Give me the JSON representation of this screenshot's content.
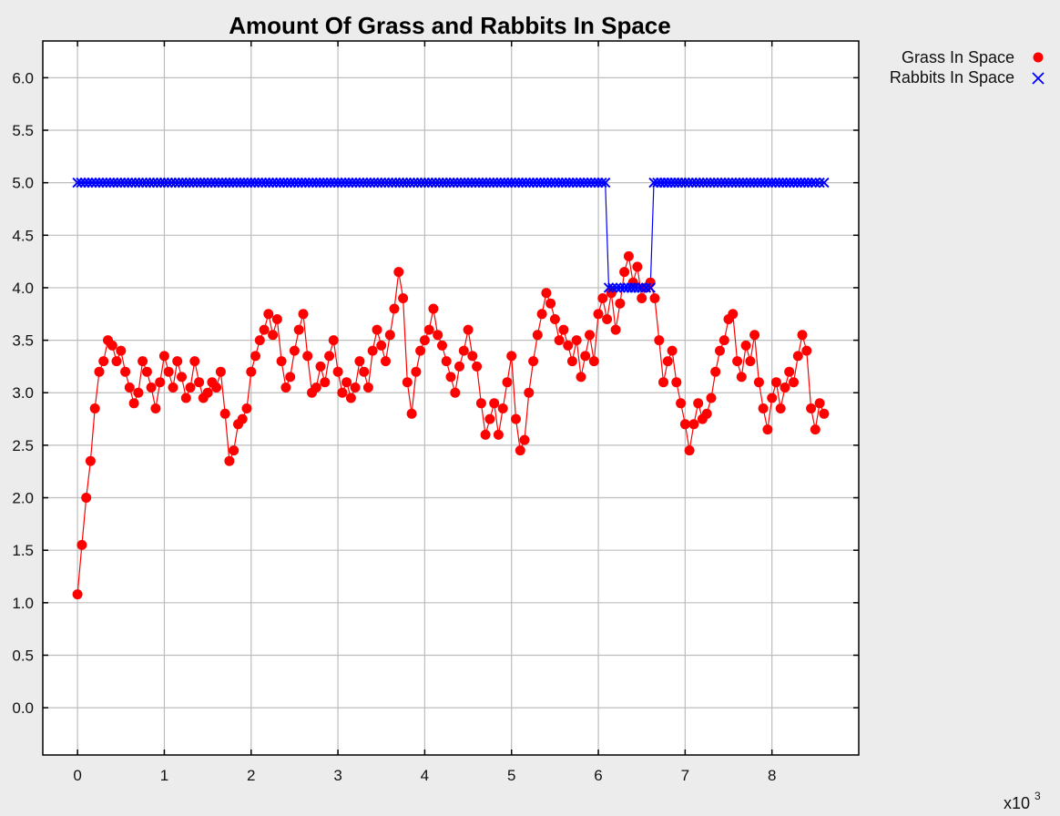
{
  "chart_data": {
    "type": "line",
    "title": "Amount Of Grass and Rabbits In Space",
    "xlabel": "",
    "ylabel": "",
    "x_multiplier_label": "x10",
    "x_multiplier_exponent": "3",
    "xlim": [
      -0.4,
      9.0
    ],
    "ylim": [
      -0.45,
      6.35
    ],
    "x_ticks": [
      0,
      1,
      2,
      3,
      4,
      5,
      6,
      7,
      8
    ],
    "x_tick_labels": [
      "0",
      "1",
      "2",
      "3",
      "4",
      "5",
      "6",
      "7",
      "8"
    ],
    "y_ticks": [
      0,
      0.5,
      1,
      1.5,
      2,
      2.5,
      3,
      3.5,
      4,
      4.5,
      5,
      5.5,
      6
    ],
    "y_tick_labels": [
      "0.0",
      "0.5",
      "1.0",
      "1.5",
      "2.0",
      "2.5",
      "3.0",
      "3.5",
      "4.0",
      "4.5",
      "5.0",
      "5.5",
      "6.0"
    ],
    "grid": true,
    "legend_position": "outside-top-right",
    "series": [
      {
        "name": "Grass In Space",
        "marker": "circle",
        "color": "#ff0000",
        "x": [
          0.0,
          0.05,
          0.1,
          0.15,
          0.2,
          0.25,
          0.3,
          0.35,
          0.4,
          0.45,
          0.5,
          0.55,
          0.6,
          0.65,
          0.7,
          0.75,
          0.8,
          0.85,
          0.9,
          0.95,
          1.0,
          1.05,
          1.1,
          1.15,
          1.2,
          1.25,
          1.3,
          1.35,
          1.4,
          1.45,
          1.5,
          1.55,
          1.6,
          1.65,
          1.7,
          1.75,
          1.8,
          1.85,
          1.9,
          1.95,
          2.0,
          2.05,
          2.1,
          2.15,
          2.2,
          2.25,
          2.3,
          2.35,
          2.4,
          2.45,
          2.5,
          2.55,
          2.6,
          2.65,
          2.7,
          2.75,
          2.8,
          2.85,
          2.9,
          2.95,
          3.0,
          3.05,
          3.1,
          3.15,
          3.2,
          3.25,
          3.3,
          3.35,
          3.4,
          3.45,
          3.5,
          3.55,
          3.6,
          3.65,
          3.7,
          3.75,
          3.8,
          3.85,
          3.9,
          3.95,
          4.0,
          4.05,
          4.1,
          4.15,
          4.2,
          4.25,
          4.3,
          4.35,
          4.4,
          4.45,
          4.5,
          4.55,
          4.6,
          4.65,
          4.7,
          4.75,
          4.8,
          4.85,
          4.9,
          4.95,
          5.0,
          5.05,
          5.1,
          5.15,
          5.2,
          5.25,
          5.3,
          5.35,
          5.4,
          5.45,
          5.5,
          5.55,
          5.6,
          5.65,
          5.7,
          5.75,
          5.8,
          5.85,
          5.9,
          5.95,
          6.0,
          6.05,
          6.1,
          6.15,
          6.2,
          6.25,
          6.3,
          6.35,
          6.4,
          6.45,
          6.5,
          6.55,
          6.6,
          6.65,
          6.7,
          6.75,
          6.8,
          6.85,
          6.9,
          6.95,
          7.0,
          7.05,
          7.1,
          7.15,
          7.2,
          7.25,
          7.3,
          7.35,
          7.4,
          7.45,
          7.5,
          7.55,
          7.6,
          7.65,
          7.7,
          7.75,
          7.8,
          7.85,
          7.9,
          7.95,
          8.0,
          8.05,
          8.1,
          8.15,
          8.2,
          8.25,
          8.3,
          8.35,
          8.4,
          8.45,
          8.5,
          8.55,
          8.6
        ],
        "y": [
          1.08,
          1.55,
          2.0,
          2.35,
          2.85,
          3.2,
          3.3,
          3.5,
          3.45,
          3.3,
          3.4,
          3.2,
          3.05,
          2.9,
          3.0,
          3.3,
          3.2,
          3.05,
          2.85,
          3.1,
          3.35,
          3.2,
          3.05,
          3.3,
          3.15,
          2.95,
          3.05,
          3.3,
          3.1,
          2.95,
          3.0,
          3.1,
          3.05,
          3.2,
          2.8,
          2.35,
          2.45,
          2.7,
          2.75,
          2.85,
          3.2,
          3.35,
          3.5,
          3.6,
          3.75,
          3.55,
          3.7,
          3.3,
          3.05,
          3.15,
          3.4,
          3.6,
          3.75,
          3.35,
          3.0,
          3.05,
          3.25,
          3.1,
          3.35,
          3.5,
          3.2,
          3.0,
          3.1,
          2.95,
          3.05,
          3.3,
          3.2,
          3.05,
          3.4,
          3.6,
          3.45,
          3.3,
          3.55,
          3.8,
          4.15,
          3.9,
          3.1,
          2.8,
          3.2,
          3.4,
          3.5,
          3.6,
          3.8,
          3.55,
          3.45,
          3.3,
          3.15,
          3.0,
          3.25,
          3.4,
          3.6,
          3.35,
          3.25,
          2.9,
          2.6,
          2.75,
          2.9,
          2.6,
          2.85,
          3.1,
          3.35,
          2.75,
          2.45,
          2.55,
          3.0,
          3.3,
          3.55,
          3.75,
          3.95,
          3.85,
          3.7,
          3.5,
          3.6,
          3.45,
          3.3,
          3.5,
          3.15,
          3.35,
          3.55,
          3.3,
          3.75,
          3.9,
          3.7,
          3.95,
          3.6,
          3.85,
          4.15,
          4.3,
          4.05,
          4.2,
          3.9,
          4.0,
          4.05,
          3.9,
          3.5,
          3.1,
          3.3,
          3.4,
          3.1,
          2.9,
          2.7,
          2.45,
          2.7,
          2.9,
          2.75,
          2.8,
          2.95,
          3.2,
          3.4,
          3.5,
          3.7,
          3.75,
          3.3,
          3.15,
          3.45,
          3.3,
          3.55,
          3.1,
          2.85,
          2.65,
          2.95,
          3.1,
          2.85,
          3.05,
          3.2,
          3.1,
          3.35,
          3.55,
          3.4,
          2.85,
          2.65,
          2.9,
          2.8
        ],
        "note": "sampled; original series contains many more densely spaced points"
      },
      {
        "name": "Rabbits In Space",
        "marker": "x",
        "color": "#0000ff",
        "x": [
          0.0,
          0.5,
          1.0,
          1.5,
          2.0,
          2.5,
          3.0,
          3.5,
          4.0,
          4.5,
          5.0,
          5.5,
          6.0,
          6.08,
          6.12,
          6.3,
          6.5,
          6.6,
          6.64,
          7.0,
          7.5,
          8.0,
          8.5,
          8.6
        ],
        "y": [
          5,
          5,
          5,
          5,
          5,
          5,
          5,
          5,
          5,
          5,
          5,
          5,
          5,
          5,
          4,
          4,
          4,
          4,
          5,
          5,
          5,
          5,
          5,
          5
        ]
      }
    ]
  }
}
